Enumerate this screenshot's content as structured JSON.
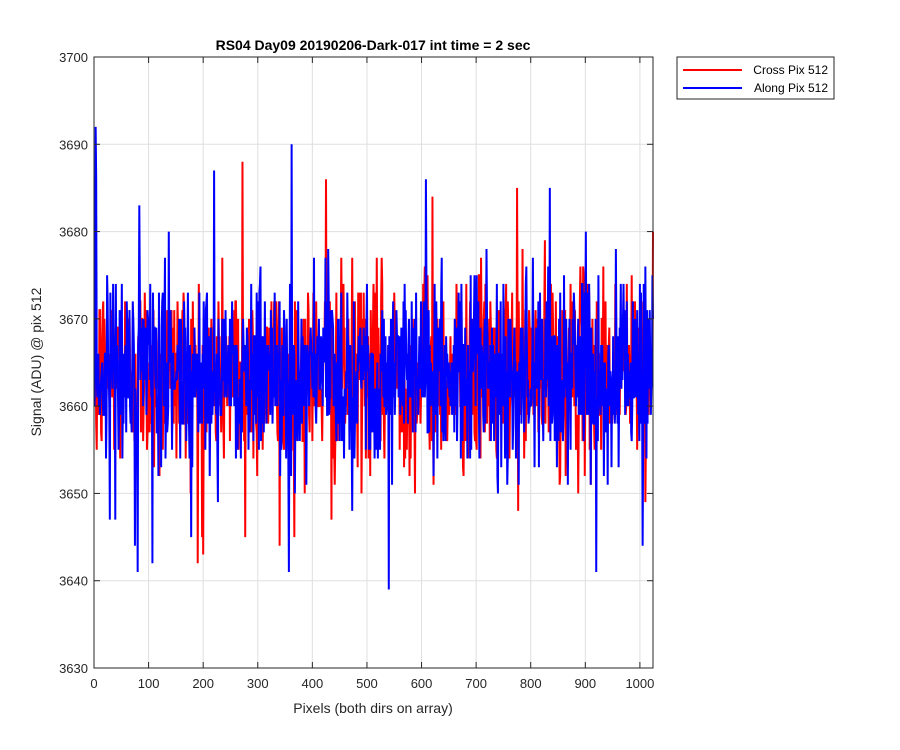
{
  "chart_data": {
    "type": "line",
    "title": "RS04 Day09 20190206-Dark-017 int time = 2 sec",
    "xlabel": "Pixels (both dirs on array)",
    "ylabel": "Signal (ADU) @ pix 512",
    "xlim": [
      0,
      1024
    ],
    "ylim": [
      3630,
      3700
    ],
    "x_ticks": [
      0,
      100,
      200,
      300,
      400,
      500,
      600,
      700,
      800,
      900,
      1000
    ],
    "y_ticks": [
      3630,
      3640,
      3650,
      3660,
      3670,
      3680,
      3690,
      3700
    ],
    "x_tick_labels": [
      "0",
      "100",
      "200",
      "300",
      "400",
      "500",
      "600",
      "700",
      "800",
      "900",
      "1000"
    ],
    "y_tick_labels": [
      "3630",
      "3640",
      "3650",
      "3660",
      "3670",
      "3680",
      "3690",
      "3700"
    ],
    "grid": true,
    "legend_position": "outside top-right",
    "series": [
      {
        "name": "Cross Pix 512",
        "color": "#ff0000",
        "x_range": [
          1,
          1024
        ],
        "approx_mean": 3664,
        "approx_std": 6,
        "notable_points": [
          [
            5,
            3655
          ],
          [
            120,
            3652
          ],
          [
            190,
            3642
          ],
          [
            200,
            3643
          ],
          [
            272,
            3688
          ],
          [
            277,
            3645
          ],
          [
            340,
            3644
          ],
          [
            425,
            3686
          ],
          [
            435,
            3647
          ],
          [
            620,
            3684
          ],
          [
            775,
            3685
          ],
          [
            1010,
            3649
          ],
          [
            1024,
            3680
          ]
        ]
      },
      {
        "name": "Along Pix 512",
        "color": "#0000ff",
        "x_range": [
          1,
          1024
        ],
        "approx_mean": 3664,
        "approx_std": 6,
        "notable_points": [
          [
            3,
            3692
          ],
          [
            4,
            3686
          ],
          [
            75,
            3644
          ],
          [
            80,
            3641
          ],
          [
            107,
            3642
          ],
          [
            220,
            3687
          ],
          [
            357,
            3641
          ],
          [
            362,
            3690
          ],
          [
            540,
            3639
          ],
          [
            608,
            3686
          ],
          [
            835,
            3685
          ],
          [
            920,
            3641
          ],
          [
            1005,
            3644
          ]
        ]
      }
    ]
  }
}
